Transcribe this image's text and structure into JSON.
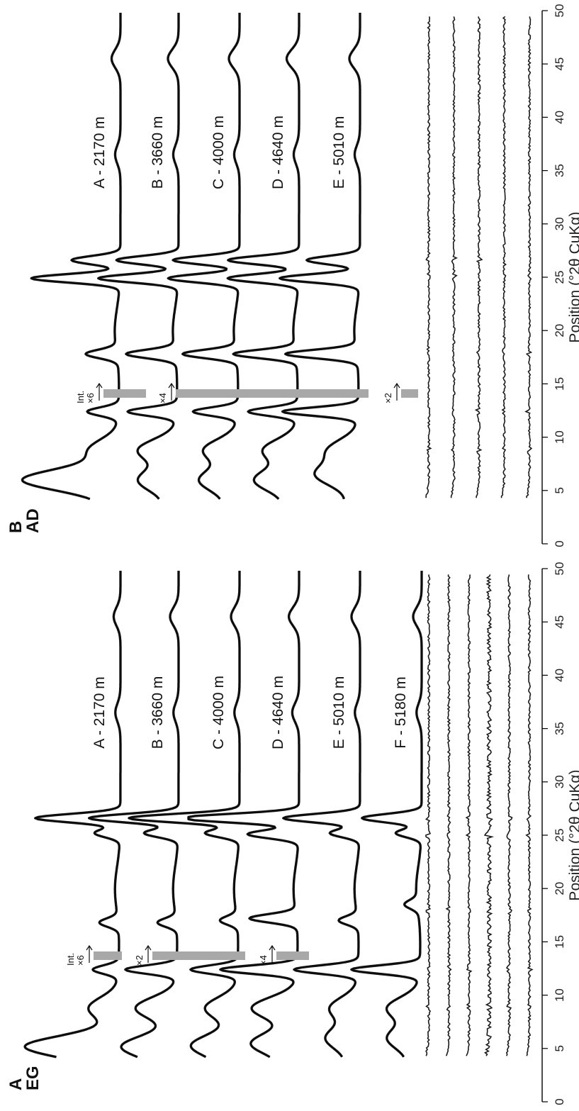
{
  "figure": {
    "rotation": "rotated 90 degrees clockwise",
    "colors": {
      "patterns": "#1a1a1a",
      "intensity_bar": "#a8a8a8",
      "axes": "#000000"
    }
  },
  "chart_data": [
    {
      "type": "line",
      "panel_letter": "A",
      "panel_treatment": "EG",
      "xlabel": "Position (°2θ CuKα)",
      "xlim": [
        0,
        50
      ],
      "x_ticks": [
        "0",
        "5",
        "10",
        "15",
        "20",
        "25",
        "30",
        "35",
        "40",
        "45",
        "50"
      ],
      "series": [
        {
          "name": "A - 2170 m",
          "peaks": [
            [
              5.2,
              1.0
            ],
            [
              8.8,
              0.32
            ],
            [
              12.4,
              0.3
            ],
            [
              16.8,
              0.22
            ],
            [
              25.2,
              0.3
            ],
            [
              26.6,
              1.0
            ],
            [
              36.5,
              0.06
            ],
            [
              45.5,
              0.08
            ]
          ]
        },
        {
          "name": "B - 3660 m",
          "peaks": [
            [
              5.2,
              0.55
            ],
            [
              8.8,
              0.45
            ],
            [
              12.4,
              0.6
            ],
            [
              16.8,
              0.22
            ],
            [
              25.2,
              0.4
            ],
            [
              26.6,
              1.05
            ],
            [
              36.5,
              0.06
            ],
            [
              45.5,
              0.1
            ]
          ]
        },
        {
          "name": "C - 4000 m",
          "peaks": [
            [
              5.3,
              0.45
            ],
            [
              8.8,
              0.35
            ],
            [
              12.4,
              0.55
            ],
            [
              17.0,
              0.2
            ],
            [
              25.2,
              0.4
            ],
            [
              26.6,
              1.3
            ],
            [
              36.5,
              0.06
            ],
            [
              45.5,
              0.1
            ]
          ]
        },
        {
          "name": "D - 4640 m",
          "peaks": [
            [
              5.5,
              0.45
            ],
            [
              8.8,
              0.5
            ],
            [
              12.4,
              0.9
            ],
            [
              17.2,
              0.55
            ],
            [
              25.1,
              0.6
            ],
            [
              26.6,
              1.4
            ],
            [
              36.5,
              0.08
            ],
            [
              45.5,
              0.12
            ]
          ]
        },
        {
          "name": "E - 5010 m",
          "peaks": [
            [
              6.0,
              0.3
            ],
            [
              8.8,
              0.3
            ],
            [
              12.4,
              0.75
            ],
            [
              17.0,
              0.22
            ],
            [
              25.2,
              0.35
            ],
            [
              26.6,
              0.9
            ],
            [
              36.5,
              0.06
            ],
            [
              45.5,
              0.1
            ]
          ]
        },
        {
          "name": "F - 5180 m",
          "peaks": [
            [
              6.0,
              0.3
            ],
            [
              8.8,
              0.35
            ],
            [
              12.4,
              0.8
            ],
            [
              18.5,
              0.15
            ],
            [
              25.2,
              0.3
            ],
            [
              26.6,
              0.7
            ],
            [
              36.5,
              0.06
            ],
            [
              45.5,
              0.1
            ]
          ]
        }
      ],
      "difference_curves": 6,
      "intensity_scale": [
        {
          "label": "×6",
          "header": "Int."
        },
        {
          "label": "×2",
          "header": ""
        },
        {
          "label": "×4",
          "header": ""
        }
      ]
    },
    {
      "type": "line",
      "panel_letter": "B",
      "panel_treatment": "AD",
      "xlabel": "Position (°2θ CuKα)",
      "xlim": [
        0,
        50
      ],
      "x_ticks": [
        "0",
        "5",
        "10",
        "15",
        "20",
        "25",
        "30",
        "35",
        "40",
        "45",
        "50"
      ],
      "series": [
        {
          "name": "A - 2170 m",
          "peaks": [
            [
              6.0,
              1.0
            ],
            [
              8.8,
              0.3
            ],
            [
              12.4,
              0.35
            ],
            [
              17.8,
              0.35
            ],
            [
              24.9,
              1.0
            ],
            [
              26.6,
              0.55
            ],
            [
              36.5,
              0.06
            ],
            [
              45.5,
              0.1
            ]
          ]
        },
        {
          "name": "B - 3660 m",
          "peaks": [
            [
              6.0,
              0.35
            ],
            [
              8.8,
              0.4
            ],
            [
              12.4,
              0.55
            ],
            [
              17.8,
              0.55
            ],
            [
              24.9,
              0.9
            ],
            [
              26.6,
              0.7
            ],
            [
              36.5,
              0.06
            ],
            [
              45.5,
              0.12
            ]
          ]
        },
        {
          "name": "C - 4000 m",
          "peaks": [
            [
              6.0,
              0.35
            ],
            [
              8.8,
              0.35
            ],
            [
              12.4,
              0.5
            ],
            [
              17.8,
              0.6
            ],
            [
              24.9,
              0.8
            ],
            [
              26.6,
              0.75
            ],
            [
              36.5,
              0.06
            ],
            [
              45.5,
              0.12
            ]
          ]
        },
        {
          "name": "D - 4640 m",
          "peaks": [
            [
              6.0,
              0.4
            ],
            [
              8.8,
              0.35
            ],
            [
              12.4,
              0.55
            ],
            [
              17.8,
              0.7
            ],
            [
              24.9,
              0.8
            ],
            [
              26.6,
              0.8
            ],
            [
              36.5,
              0.06
            ],
            [
              45.5,
              0.14
            ]
          ]
        },
        {
          "name": "E - 5010 m",
          "peaks": [
            [
              6.5,
              0.4
            ],
            [
              8.8,
              0.3
            ],
            [
              12.4,
              0.85
            ],
            [
              17.8,
              0.8
            ],
            [
              24.9,
              0.9
            ],
            [
              26.6,
              0.6
            ],
            [
              36.5,
              0.06
            ],
            [
              45.5,
              0.12
            ]
          ]
        }
      ],
      "difference_curves": 5,
      "intensity_scale": [
        {
          "label": "×6",
          "header": "Int."
        },
        {
          "label": "×4",
          "header": ""
        },
        {
          "label": "×2",
          "header": ""
        }
      ]
    }
  ]
}
